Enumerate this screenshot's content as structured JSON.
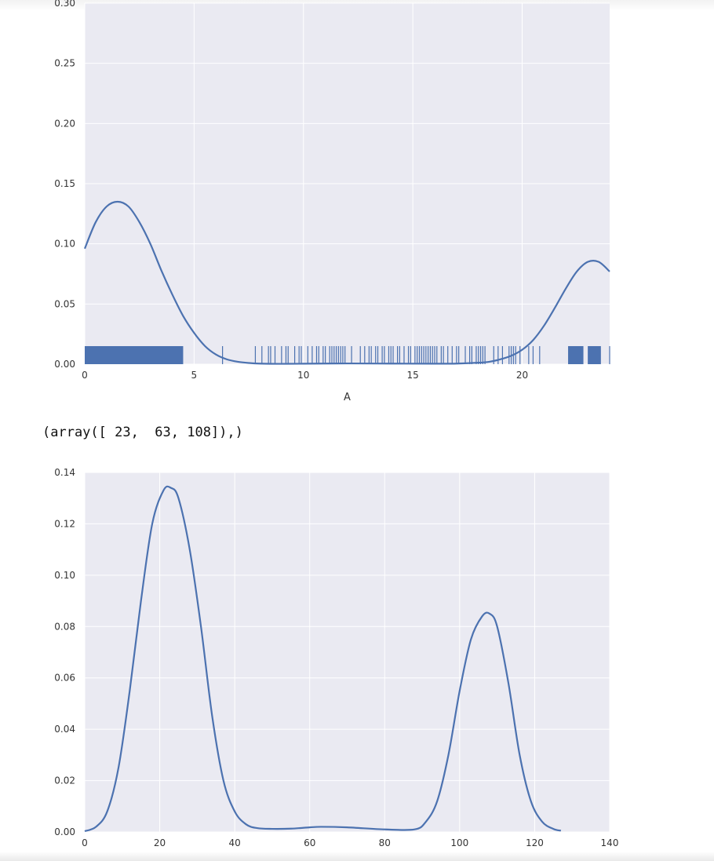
{
  "output_text": "(array([ 23,  63, 108]),)",
  "colors": {
    "line": "#4c72b0",
    "background": "#eaeaf2",
    "grid": "#ffffff"
  },
  "chart_data": [
    {
      "type": "line",
      "subtype": "kde-with-rug",
      "xlabel": "A",
      "ylabel": "",
      "xlim": [
        0,
        24
      ],
      "ylim": [
        0,
        0.3
      ],
      "grid": true,
      "xticks": [
        0,
        5,
        10,
        15,
        20
      ],
      "yticks": [
        0.0,
        0.05,
        0.1,
        0.15,
        0.2,
        0.25,
        0.3
      ],
      "ytick_labels": [
        "0.00",
        "0.05",
        "0.10",
        "0.15",
        "0.20",
        "0.25",
        "0.30"
      ],
      "series": [
        {
          "x": [
            0,
            0.5,
            1.0,
            1.5,
            2.0,
            2.5,
            3.0,
            3.5,
            4.0,
            4.5,
            5.0,
            5.5,
            6.0,
            6.5,
            7.0,
            7.5,
            8.0,
            9.0,
            10.0,
            12.0,
            14.0,
            16.0,
            17.0,
            18.0,
            18.5,
            19.0,
            19.5,
            20.0,
            20.5,
            21.0,
            21.5,
            22.0,
            22.5,
            23.0,
            23.5,
            24.0
          ],
          "y": [
            0.096,
            0.118,
            0.131,
            0.135,
            0.131,
            0.118,
            0.1,
            0.078,
            0.058,
            0.04,
            0.026,
            0.015,
            0.008,
            0.004,
            0.002,
            0.001,
            0.0005,
            0.0003,
            0.0004,
            0.0006,
            0.0005,
            0.0004,
            0.0005,
            0.0012,
            0.002,
            0.004,
            0.007,
            0.012,
            0.02,
            0.032,
            0.047,
            0.063,
            0.077,
            0.085,
            0.085,
            0.077
          ]
        }
      ],
      "rug": {
        "dense_ranges": [
          [
            0,
            4.5
          ],
          [
            22.1,
            22.8
          ],
          [
            23.0,
            23.6
          ]
        ],
        "ticks": [
          6.3,
          7.8,
          8.1,
          8.4,
          8.5,
          8.7,
          9.0,
          9.2,
          9.3,
          9.6,
          9.8,
          9.9,
          10.2,
          10.4,
          10.6,
          10.7,
          10.9,
          11.0,
          11.2,
          11.3,
          11.4,
          11.5,
          11.6,
          11.7,
          11.8,
          11.9,
          12.2,
          12.6,
          12.8,
          13.0,
          13.1,
          13.3,
          13.4,
          13.6,
          13.7,
          13.9,
          14.0,
          14.1,
          14.3,
          14.4,
          14.6,
          14.8,
          14.9,
          15.1,
          15.2,
          15.3,
          15.4,
          15.5,
          15.6,
          15.7,
          15.8,
          15.9,
          16.0,
          16.1,
          16.3,
          16.4,
          16.6,
          16.8,
          17.0,
          17.1,
          17.4,
          17.6,
          17.7,
          17.9,
          18.0,
          18.1,
          18.2,
          18.3,
          18.7,
          18.9,
          19.1,
          19.4,
          19.5,
          19.6,
          19.7,
          19.9,
          20.3,
          20.5,
          20.8,
          24.0
        ]
      }
    },
    {
      "type": "line",
      "subtype": "kde",
      "xlabel": "",
      "ylabel": "",
      "xlim": [
        0,
        140
      ],
      "ylim": [
        0,
        0.14
      ],
      "grid": true,
      "xticks": [
        0,
        20,
        40,
        60,
        80,
        100,
        120,
        140
      ],
      "yticks": [
        0.0,
        0.02,
        0.04,
        0.06,
        0.08,
        0.1,
        0.12,
        0.14
      ],
      "ytick_labels": [
        "0.00",
        "0.02",
        "0.04",
        "0.06",
        "0.08",
        "0.10",
        "0.12",
        "0.14"
      ],
      "series": [
        {
          "x": [
            0,
            3,
            6,
            9,
            12,
            15,
            18,
            21,
            23,
            25,
            28,
            31,
            34,
            37,
            40,
            43,
            46,
            50,
            55,
            60,
            63,
            70,
            80,
            88,
            91,
            94,
            97,
            100,
            103,
            106,
            108,
            110,
            113,
            116,
            119,
            122,
            125,
            127
          ],
          "y": [
            0.0003,
            0.002,
            0.008,
            0.025,
            0.055,
            0.09,
            0.12,
            0.133,
            0.134,
            0.13,
            0.11,
            0.08,
            0.045,
            0.02,
            0.008,
            0.003,
            0.0015,
            0.0012,
            0.0013,
            0.0018,
            0.002,
            0.0018,
            0.001,
            0.001,
            0.004,
            0.012,
            0.03,
            0.055,
            0.075,
            0.084,
            0.085,
            0.08,
            0.058,
            0.03,
            0.012,
            0.004,
            0.0012,
            0.0005
          ]
        }
      ]
    }
  ]
}
